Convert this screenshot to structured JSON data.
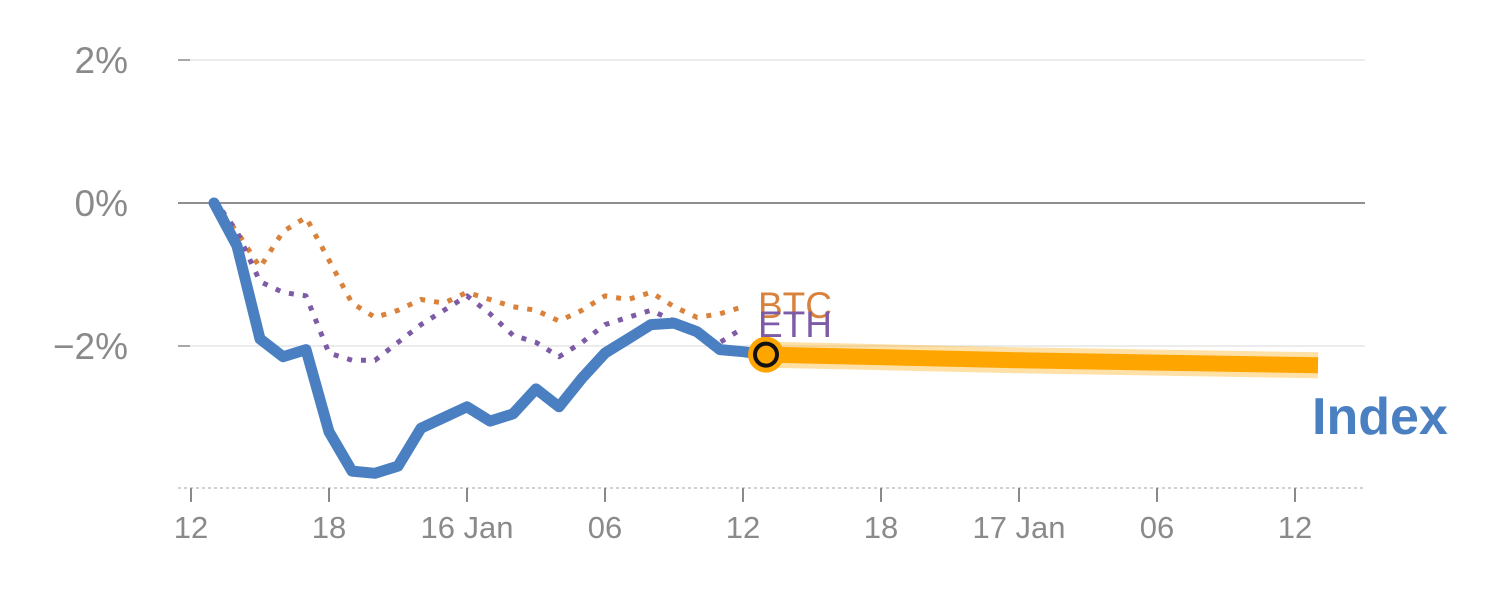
{
  "chart_data": {
    "type": "line",
    "title": "",
    "xlabel": "",
    "ylabel": "",
    "ylim": [
      -4,
      2
    ],
    "xlim": [
      -1,
      50
    ],
    "y_ticks": [
      {
        "value": 2,
        "label": "2%"
      },
      {
        "value": 0,
        "label": "0%"
      },
      {
        "value": -2,
        "label": "−2%"
      }
    ],
    "x_ticks": [
      {
        "value": 0,
        "label": "12"
      },
      {
        "value": 6,
        "label": "18"
      },
      {
        "value": 12,
        "label": "16 Jan"
      },
      {
        "value": 18,
        "label": "06"
      },
      {
        "value": 24,
        "label": "12"
      },
      {
        "value": 30,
        "label": "18"
      },
      {
        "value": 36,
        "label": "17 Jan"
      },
      {
        "value": 42,
        "label": "06"
      },
      {
        "value": 48,
        "label": "12"
      }
    ],
    "series": [
      {
        "name": "BTC",
        "label": "BTC",
        "style": "dotted",
        "color": "#d9823b",
        "x": [
          1,
          2,
          3,
          4,
          5,
          6,
          7,
          8,
          9,
          10,
          11,
          12,
          13,
          14,
          15,
          16,
          17,
          18,
          19,
          20,
          21,
          22,
          23,
          24
        ],
        "y": [
          0.0,
          -0.4,
          -0.9,
          -0.4,
          -0.2,
          -0.8,
          -1.4,
          -1.6,
          -1.5,
          -1.35,
          -1.4,
          -1.25,
          -1.35,
          -1.45,
          -1.5,
          -1.65,
          -1.5,
          -1.3,
          -1.35,
          -1.25,
          -1.45,
          -1.6,
          -1.55,
          -1.45
        ]
      },
      {
        "name": "ETH",
        "label": "ETH",
        "style": "dotted",
        "color": "#7e5ba6",
        "x": [
          1,
          2,
          3,
          4,
          5,
          6,
          7,
          8,
          9,
          10,
          11,
          12,
          13,
          14,
          15,
          16,
          17,
          18,
          19,
          20,
          21,
          22,
          23,
          24
        ],
        "y": [
          0.05,
          -0.4,
          -1.1,
          -1.25,
          -1.3,
          -2.1,
          -2.2,
          -2.2,
          -1.95,
          -1.7,
          -1.5,
          -1.3,
          -1.55,
          -1.85,
          -1.95,
          -2.15,
          -1.95,
          -1.7,
          -1.6,
          -1.5,
          -1.65,
          -1.85,
          -1.95,
          -1.75
        ]
      },
      {
        "name": "Index",
        "label": "Index",
        "style": "solid",
        "color": "#4a7fc1",
        "x": [
          1,
          2,
          3,
          4,
          5,
          6,
          7,
          8,
          9,
          10,
          11,
          12,
          13,
          14,
          15,
          16,
          17,
          18,
          19,
          20,
          21,
          22,
          23,
          24,
          25
        ],
        "y": [
          0.0,
          -0.6,
          -1.9,
          -2.15,
          -2.05,
          -3.2,
          -3.75,
          -3.78,
          -3.68,
          -3.15,
          -3.0,
          -2.85,
          -3.05,
          -2.95,
          -2.6,
          -2.85,
          -2.45,
          -2.1,
          -1.9,
          -1.7,
          -1.68,
          -1.8,
          -2.05,
          -2.08,
          -2.12
        ]
      },
      {
        "name": "Index forecast",
        "style": "band",
        "color": "#ffa500",
        "x": [
          25,
          36,
          49
        ],
        "y": [
          -2.12,
          -2.2,
          -2.27
        ]
      }
    ],
    "current_marker": {
      "x": 25,
      "y": -2.12
    },
    "grid": true
  }
}
